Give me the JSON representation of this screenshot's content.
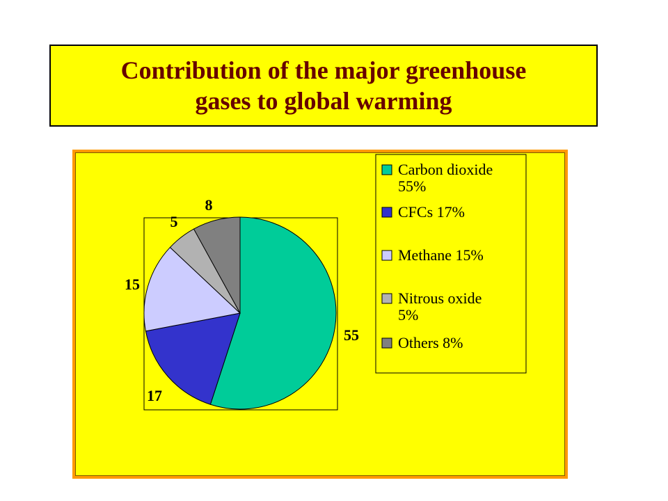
{
  "title": {
    "line1": "Contribution of the major greenhouse",
    "line2": "gases to global warming"
  },
  "colors": {
    "title_text": "#660000",
    "background": "#ffff00",
    "frame": "#ff9900"
  },
  "chart_data": {
    "type": "pie",
    "title": "Contribution of the major greenhouse gases to global warming",
    "slices": [
      {
        "label": "55",
        "value": 55,
        "legend_lines": [
          "Carbon dioxide",
          "55%"
        ],
        "color": "#00cc99"
      },
      {
        "label": "17",
        "value": 17,
        "legend_lines": [
          "CFCs 17%"
        ],
        "color": "#3333cc"
      },
      {
        "label": "15",
        "value": 15,
        "legend_lines": [
          "Methane 15%"
        ],
        "color": "#ccccff"
      },
      {
        "label": "5",
        "value": 5,
        "legend_lines": [
          "Nitrous oxide",
          "5%"
        ],
        "color": "#b2b2b2"
      },
      {
        "label": "8",
        "value": 8,
        "legend_lines": [
          "Others 8%"
        ],
        "color": "#808080"
      }
    ],
    "start": "12 o'clock",
    "direction": "clockwise",
    "legend_position": "right"
  }
}
